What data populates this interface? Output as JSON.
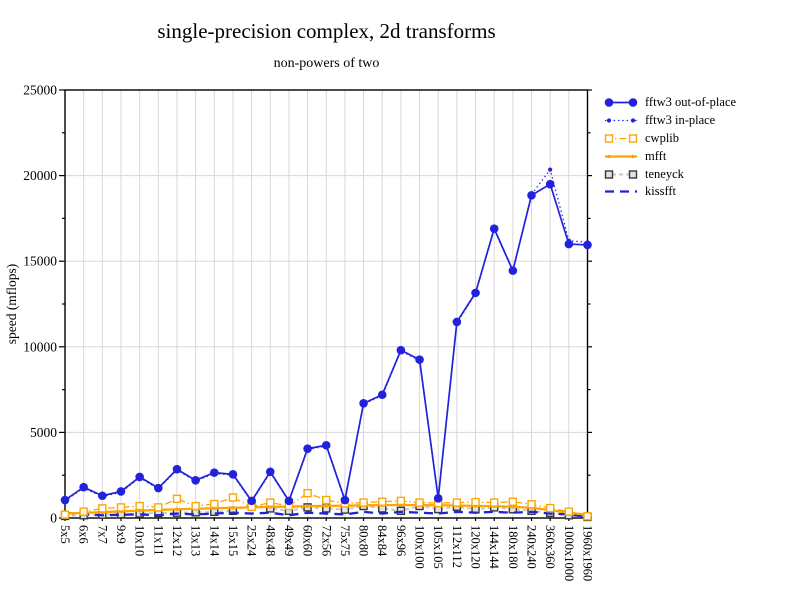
{
  "title": "single-precision complex, 2d transforms",
  "subtitle": "non-powers of two",
  "colors": {
    "blue": "#2222dd",
    "orange": "#ffa500",
    "gray_line": "#c8c8c8",
    "gray_marker_edge": "#383838",
    "grid": "#d8d8d8",
    "axis": "#000000"
  },
  "chart_data": {
    "type": "line",
    "title": "single-precision complex, 2d transforms",
    "subtitle": "non-powers of two",
    "xlabel": "",
    "ylabel": "speed (mflops)",
    "ylim": [
      0,
      25000
    ],
    "yticks": [
      0,
      5000,
      10000,
      15000,
      20000,
      25000
    ],
    "minor_tick_step": 2500,
    "grid": true,
    "legend_position": "right",
    "categories": [
      "5x5",
      "6x6",
      "7x7",
      "9x9",
      "10x10",
      "11x11",
      "12x12",
      "13x13",
      "14x14",
      "15x15",
      "25x24",
      "48x48",
      "49x49",
      "60x60",
      "72x56",
      "75x75",
      "80x80",
      "84x84",
      "96x96",
      "100x100",
      "105x105",
      "112x112",
      "120x120",
      "144x144",
      "180x180",
      "240x240",
      "360x360",
      "1000x1000",
      "1960x1960"
    ],
    "series": [
      {
        "name": "fftw3 out-of-place",
        "color": "#2222dd",
        "line": "solid",
        "width": 1.7,
        "marker": "filled-circle",
        "marker_size": 4.3,
        "values": [
          1050,
          1800,
          1300,
          1550,
          2400,
          1750,
          2850,
          2200,
          2650,
          2550,
          1000,
          2700,
          1000,
          4050,
          4250,
          1050,
          6700,
          7200,
          9800,
          9250,
          1150,
          11450,
          13150,
          16900,
          14450,
          18850,
          19500,
          16000,
          15950
        ]
      },
      {
        "name": "fftw3 in-place",
        "color": "#2222dd",
        "line": "dotted",
        "width": 1.2,
        "marker": "filled-circle",
        "marker_size": 2.1,
        "values": [
          1000,
          1750,
          1250,
          1500,
          2350,
          1700,
          2800,
          2150,
          2600,
          2500,
          950,
          2650,
          950,
          4000,
          4200,
          1000,
          6650,
          7150,
          9750,
          9200,
          1100,
          11400,
          13100,
          16850,
          14400,
          18900,
          20350,
          16200,
          16100
        ]
      },
      {
        "name": "cwplib",
        "color": "#ffa500",
        "line": "dashdot",
        "width": 1.3,
        "marker": "open-square",
        "marker_size": 7,
        "marker_fill": "#ffffff",
        "marker_color": "#ffa500",
        "values": [
          200,
          370,
          560,
          620,
          700,
          620,
          1120,
          700,
          820,
          1200,
          650,
          900,
          700,
          1450,
          1050,
          850,
          900,
          950,
          1000,
          900,
          870,
          900,
          930,
          900,
          950,
          800,
          580,
          370,
          100
        ]
      },
      {
        "name": "mfft",
        "color": "#ffa500",
        "line": "solid",
        "width": 2.3,
        "marker": "filled-circle",
        "marker_size": 1.8,
        "values": [
          260,
          300,
          340,
          390,
          430,
          470,
          510,
          540,
          570,
          600,
          620,
          650,
          660,
          690,
          710,
          720,
          740,
          750,
          760,
          750,
          740,
          730,
          710,
          690,
          650,
          600,
          460,
          310,
          180
        ]
      },
      {
        "name": "teneyck",
        "color": "#c8c8c8",
        "line": "dashed",
        "width": 2.0,
        "marker": "open-square",
        "marker_size": 7,
        "marker_fill": "#e2e2e2",
        "marker_color": "#383838",
        "values": [
          120,
          160,
          190,
          220,
          260,
          290,
          310,
          330,
          360,
          420,
          800,
          560,
          420,
          620,
          560,
          490,
          700,
          560,
          420,
          700,
          520,
          660,
          510,
          620,
          510,
          420,
          300,
          160,
          60
        ]
      },
      {
        "name": "kissfft",
        "color": "#2222dd",
        "line": "longdash",
        "width": 2.3,
        "marker": "none",
        "marker_size": 0,
        "values": [
          300,
          210,
          160,
          190,
          210,
          160,
          260,
          210,
          260,
          310,
          260,
          310,
          160,
          310,
          260,
          210,
          360,
          260,
          360,
          310,
          260,
          360,
          310,
          360,
          310,
          360,
          260,
          210,
          60
        ]
      }
    ]
  }
}
